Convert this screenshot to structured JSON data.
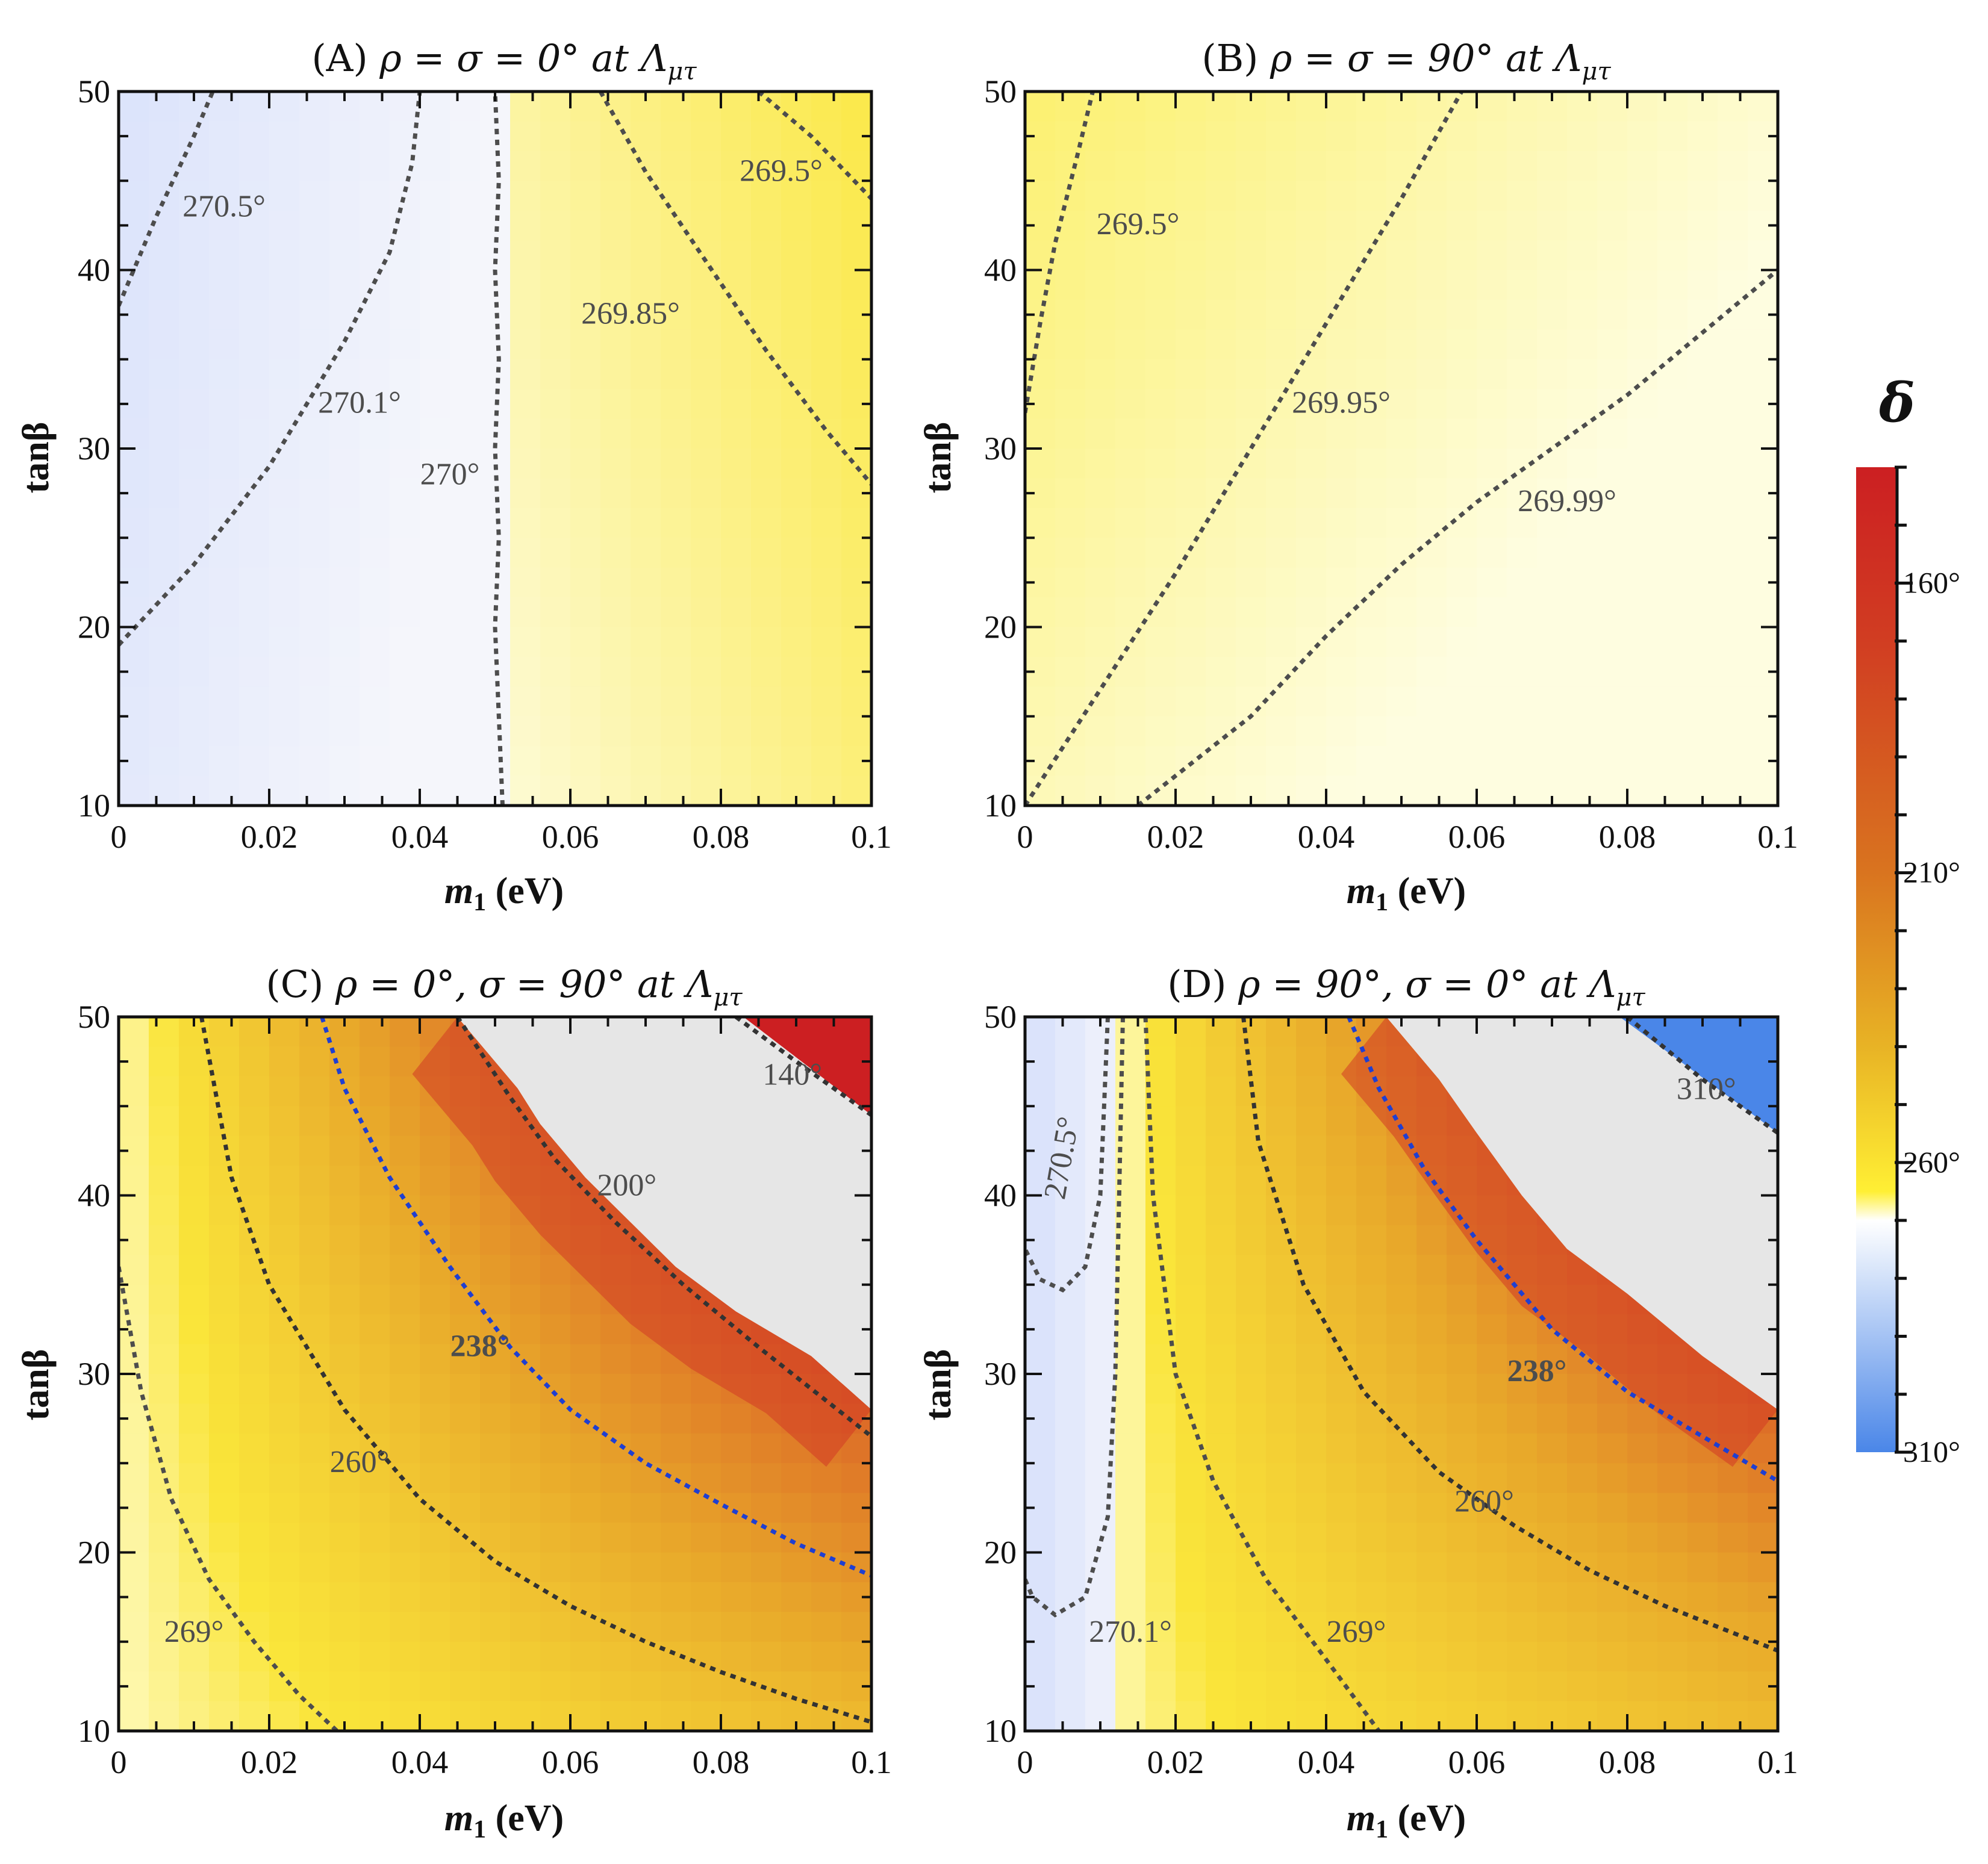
{
  "chart_data": [
    {
      "id": "A",
      "type": "heatmap",
      "title": {
        "prefix": "(A) ",
        "main": "ρ = σ = 0° at Λ",
        "sub": "μτ"
      },
      "xlabel": {
        "sym": "m",
        "sub": "1",
        "unit": " (eV)"
      },
      "ylabel": "tanβ",
      "xlim": [
        0,
        0.1
      ],
      "ylim": [
        10,
        50
      ],
      "xticks": [
        0,
        0.02,
        0.04,
        0.06,
        0.08,
        0.1
      ],
      "xtick_labels": [
        "0",
        "0.02",
        "0.04",
        "0.06",
        "0.08",
        "0.1"
      ],
      "yticks": [
        10,
        20,
        30,
        40,
        50
      ],
      "ytick_labels": [
        "10",
        "20",
        "30",
        "40",
        "50"
      ],
      "field": {
        "kind": "A"
      },
      "regions": [],
      "contours": [
        {
          "value": 270.5,
          "label": "270.5°",
          "color": "#4d4d4d",
          "points": [
            [
              0,
              38
            ],
            [
              0.005,
              43
            ],
            [
              0.01,
              47.5
            ],
            [
              0.0125,
              50
            ]
          ],
          "label_at": [
            0.014,
            43
          ]
        },
        {
          "value": 270.1,
          "label": "270.1°",
          "color": "#4d4d4d",
          "points": [
            [
              0,
              19
            ],
            [
              0.01,
              23.5
            ],
            [
              0.02,
              29
            ],
            [
              0.03,
              36
            ],
            [
              0.036,
              41
            ],
            [
              0.039,
              46
            ],
            [
              0.04,
              50
            ]
          ],
          "label_at": [
            0.032,
            32
          ]
        },
        {
          "value": 270,
          "label": "270°",
          "color": "#4d4d4d",
          "points": [
            [
              0.051,
              10
            ],
            [
              0.0505,
              15
            ],
            [
              0.05,
              20
            ],
            [
              0.0505,
              25
            ],
            [
              0.05,
              30
            ],
            [
              0.0505,
              35
            ],
            [
              0.05,
              40
            ],
            [
              0.0505,
              45
            ],
            [
              0.05,
              50
            ]
          ],
          "label_at": [
            0.044,
            28
          ]
        },
        {
          "value": 269.85,
          "label": "269.85°",
          "color": "#4d4d4d",
          "points": [
            [
              0.064,
              50
            ],
            [
              0.07,
              45.5
            ],
            [
              0.078,
              40.5
            ],
            [
              0.086,
              35.5
            ],
            [
              0.094,
              31
            ],
            [
              0.1,
              28
            ]
          ],
          "label_at": [
            0.068,
            37
          ]
        },
        {
          "value": 269.5,
          "label": "269.5°",
          "color": "#4d4d4d",
          "points": [
            [
              0.085,
              50
            ],
            [
              0.092,
              47.5
            ],
            [
              0.1,
              44
            ]
          ],
          "label_at": [
            0.088,
            45
          ]
        }
      ]
    },
    {
      "id": "B",
      "type": "heatmap",
      "title": {
        "prefix": "(B) ",
        "main": "ρ = σ = 90° at Λ",
        "sub": "μτ"
      },
      "xlabel": {
        "sym": "m",
        "sub": "1",
        "unit": " (eV)"
      },
      "ylabel": "tanβ",
      "xlim": [
        0,
        0.1
      ],
      "ylim": [
        10,
        50
      ],
      "xticks": [
        0,
        0.02,
        0.04,
        0.06,
        0.08,
        0.1
      ],
      "xtick_labels": [
        "0",
        "0.02",
        "0.04",
        "0.06",
        "0.08",
        "0.1"
      ],
      "yticks": [
        10,
        20,
        30,
        40,
        50
      ],
      "ytick_labels": [
        "10",
        "20",
        "30",
        "40",
        "50"
      ],
      "field": {
        "kind": "B"
      },
      "regions": [],
      "contours": [
        {
          "value": 269.5,
          "label": "269.5°",
          "color": "#4d4d4d",
          "points": [
            [
              0,
              32
            ],
            [
              0.002,
              37
            ],
            [
              0.004,
              41.5
            ],
            [
              0.007,
              46.5
            ],
            [
              0.009,
              50
            ]
          ],
          "label_at": [
            0.015,
            42
          ]
        },
        {
          "value": 269.95,
          "label": "269.95°",
          "color": "#4d4d4d",
          "points": [
            [
              0,
              10
            ],
            [
              0.01,
              16.5
            ],
            [
              0.02,
              23
            ],
            [
              0.03,
              30
            ],
            [
              0.04,
              37
            ],
            [
              0.05,
              44
            ],
            [
              0.058,
              50
            ]
          ],
          "label_at": [
            0.042,
            32
          ]
        },
        {
          "value": 269.99,
          "label": "269.99°",
          "color": "#4d4d4d",
          "points": [
            [
              0.015,
              10
            ],
            [
              0.03,
              15
            ],
            [
              0.04,
              19.5
            ],
            [
              0.05,
              23.5
            ],
            [
              0.06,
              27
            ],
            [
              0.07,
              30
            ],
            [
              0.08,
              33
            ],
            [
              0.09,
              36.5
            ],
            [
              0.1,
              40
            ]
          ],
          "label_at": [
            0.072,
            26.5
          ]
        }
      ]
    },
    {
      "id": "C",
      "type": "heatmap",
      "title": {
        "prefix": "(C) ",
        "main": "ρ = 0°, σ = 90° at Λ",
        "sub": "μτ"
      },
      "xlabel": {
        "sym": "m",
        "sub": "1",
        "unit": " (eV)"
      },
      "ylabel": "tanβ",
      "xlim": [
        0,
        0.1
      ],
      "ylim": [
        10,
        50
      ],
      "xticks": [
        0,
        0.02,
        0.04,
        0.06,
        0.08,
        0.1
      ],
      "xtick_labels": [
        "0",
        "0.02",
        "0.04",
        "0.06",
        "0.08",
        "0.1"
      ],
      "yticks": [
        10,
        20,
        30,
        40,
        50
      ],
      "ytick_labels": [
        "10",
        "20",
        "30",
        "40",
        "50"
      ],
      "field": {
        "kind": "C"
      },
      "regions": [
        {
          "kind": "excluded",
          "color": "#e6e6e6",
          "points": [
            [
              0.045,
              50
            ],
            [
              0.053,
              46
            ],
            [
              0.056,
              44
            ],
            [
              0.062,
              41
            ],
            [
              0.068,
              38.5
            ],
            [
              0.074,
              36
            ],
            [
              0.082,
              33.5
            ],
            [
              0.092,
              31
            ],
            [
              0.1,
              28
            ],
            [
              0.1,
              50
            ]
          ]
        },
        {
          "kind": "filled",
          "color": "#cc1f22",
          "points": [
            [
              0.083,
              50
            ],
            [
              0.1,
              50
            ],
            [
              0.1,
              44.5
            ]
          ]
        }
      ],
      "contours": [
        {
          "value": 269,
          "label": "269°",
          "color": "#4d4d4d",
          "points": [
            [
              0,
              36
            ],
            [
              0.003,
              29
            ],
            [
              0.007,
              23
            ],
            [
              0.012,
              18.5
            ],
            [
              0.018,
              15
            ],
            [
              0.024,
              12
            ],
            [
              0.029,
              10
            ]
          ],
          "label_at": [
            0.01,
            15
          ]
        },
        {
          "value": 260,
          "label": "260°",
          "color": "#333333",
          "points": [
            [
              0.011,
              50
            ],
            [
              0.015,
              41
            ],
            [
              0.02,
              35
            ],
            [
              0.03,
              28
            ],
            [
              0.04,
              23
            ],
            [
              0.05,
              19.5
            ],
            [
              0.06,
              17
            ],
            [
              0.07,
              15
            ],
            [
              0.08,
              13.3
            ],
            [
              0.09,
              11.8
            ],
            [
              0.1,
              10.5
            ]
          ],
          "label_at": [
            0.032,
            24.5
          ]
        },
        {
          "value": 238,
          "label": "238°",
          "color": "#1f3fd1",
          "points": [
            [
              0.027,
              50
            ],
            [
              0.03,
              46
            ],
            [
              0.036,
              41
            ],
            [
              0.044,
              36
            ],
            [
              0.052,
              31.5
            ],
            [
              0.06,
              28
            ],
            [
              0.07,
              25
            ],
            [
              0.08,
              22.7
            ],
            [
              0.09,
              20.5
            ],
            [
              0.1,
              18.7
            ]
          ],
          "label_at": [
            0.048,
            31
          ]
        },
        {
          "value": 200,
          "label": "200°",
          "color": "#333333",
          "points": [
            [
              0.045,
              50
            ],
            [
              0.052,
              45.5
            ],
            [
              0.058,
              42
            ],
            [
              0.066,
              38.5
            ],
            [
              0.075,
              35
            ],
            [
              0.085,
              31.5
            ],
            [
              0.1,
              26.5
            ]
          ],
          "label_at": [
            0.0675,
            40
          ]
        },
        {
          "value": 140,
          "label": "140°",
          "color": "#333333",
          "points": [
            [
              0.082,
              50
            ],
            [
              0.09,
              47.5
            ],
            [
              0.1,
              44.5
            ]
          ],
          "label_at": [
            0.0895,
            46.2
          ]
        }
      ]
    },
    {
      "id": "D",
      "type": "heatmap",
      "title": {
        "prefix": "(D) ",
        "main": "ρ = 90°, σ = 0° at Λ",
        "sub": "μτ"
      },
      "xlabel": {
        "sym": "m",
        "sub": "1",
        "unit": " (eV)"
      },
      "ylabel": "tanβ",
      "xlim": [
        0,
        0.1
      ],
      "ylim": [
        10,
        50
      ],
      "xticks": [
        0,
        0.02,
        0.04,
        0.06,
        0.08,
        0.1
      ],
      "xtick_labels": [
        "0",
        "0.02",
        "0.04",
        "0.06",
        "0.08",
        "0.1"
      ],
      "yticks": [
        10,
        20,
        30,
        40,
        50
      ],
      "ytick_labels": [
        "10",
        "20",
        "30",
        "40",
        "50"
      ],
      "field": {
        "kind": "D"
      },
      "regions": [
        {
          "kind": "excluded",
          "color": "#e6e6e6",
          "points": [
            [
              0.048,
              50
            ],
            [
              0.055,
              46.5
            ],
            [
              0.06,
              43.5
            ],
            [
              0.066,
              40
            ],
            [
              0.072,
              37
            ],
            [
              0.08,
              34.5
            ],
            [
              0.09,
              31
            ],
            [
              0.1,
              28
            ],
            [
              0.1,
              50
            ]
          ]
        },
        {
          "kind": "filled",
          "color": "#4a86e8",
          "points": [
            [
              0.079,
              50
            ],
            [
              0.1,
              50
            ],
            [
              0.1,
              43.5
            ]
          ]
        }
      ],
      "contours": [
        {
          "value": 270.5,
          "label": "270.5°",
          "color": "#4d4d4d",
          "points": [
            [
              0.011,
              50
            ],
            [
              0.0105,
              45
            ],
            [
              0.01,
              40
            ],
            [
              0.008,
              36
            ],
            [
              0.005,
              34.7
            ],
            [
              0.002,
              35.3
            ],
            [
              0,
              37
            ]
          ],
          "label_at": [
            0.0062,
            42
          ]
        },
        {
          "value": 270.1,
          "label": "270.1°",
          "color": "#4d4d4d",
          "points": [
            [
              0.013,
              50
            ],
            [
              0.0125,
              40
            ],
            [
              0.012,
              30
            ],
            [
              0.011,
              22
            ],
            [
              0.008,
              17.5
            ],
            [
              0.004,
              16.5
            ],
            [
              0.001,
              17.5
            ],
            [
              0,
              18.5
            ]
          ],
          "label_at": [
            0.014,
            15
          ]
        },
        {
          "value": 269,
          "label": "269°",
          "color": "#4d4d4d",
          "points": [
            [
              0.016,
              50
            ],
            [
              0.017,
              40
            ],
            [
              0.02,
              30
            ],
            [
              0.025,
              24
            ],
            [
              0.032,
              18.5
            ],
            [
              0.04,
              14
            ],
            [
              0.047,
              10
            ]
          ],
          "label_at": [
            0.044,
            15
          ]
        },
        {
          "value": 260,
          "label": "260°",
          "color": "#333333",
          "points": [
            [
              0.029,
              50
            ],
            [
              0.031,
              43
            ],
            [
              0.037,
              35
            ],
            [
              0.045,
              29
            ],
            [
              0.055,
              24.5
            ],
            [
              0.065,
              21.5
            ],
            [
              0.075,
              19
            ],
            [
              0.085,
              17
            ],
            [
              0.1,
              14.5
            ]
          ],
          "label_at": [
            0.061,
            22.3
          ]
        },
        {
          "value": 238,
          "label": "238°",
          "color": "#1f3fd1",
          "points": [
            [
              0.043,
              50
            ],
            [
              0.047,
              46
            ],
            [
              0.053,
              41.5
            ],
            [
              0.06,
              37.5
            ],
            [
              0.07,
              32.5
            ],
            [
              0.08,
              29
            ],
            [
              0.09,
              26.5
            ],
            [
              0.1,
              24
            ]
          ],
          "label_at": [
            0.068,
            29.6
          ]
        },
        {
          "value": 310,
          "label": "310°",
          "color": "#333333",
          "points": [
            [
              0.08,
              50
            ],
            [
              0.09,
              46.5
            ],
            [
              0.1,
              43.5
            ]
          ],
          "label_at": [
            0.0905,
            45.4
          ]
        }
      ]
    }
  ],
  "colorbar": {
    "title": "δ",
    "range": [
      140,
      310
    ],
    "ticks": [
      140,
      150,
      160,
      170,
      180,
      190,
      200,
      210,
      220,
      230,
      240,
      250,
      260,
      270,
      280,
      290,
      300,
      310
    ],
    "labeled_ticks": [
      160,
      210,
      260,
      310
    ],
    "tick_labels": [
      "160°",
      "210°",
      "260°",
      "310°"
    ],
    "stops": [
      {
        "v": 140,
        "color": "#cc1f22"
      },
      {
        "v": 170,
        "color": "#d13d22"
      },
      {
        "v": 210,
        "color": "#d9741f"
      },
      {
        "v": 240,
        "color": "#e8b325"
      },
      {
        "v": 265,
        "color": "#ffef34"
      },
      {
        "v": 270,
        "color": "#ffffff"
      },
      {
        "v": 310,
        "color": "#4a86e8"
      }
    ]
  }
}
